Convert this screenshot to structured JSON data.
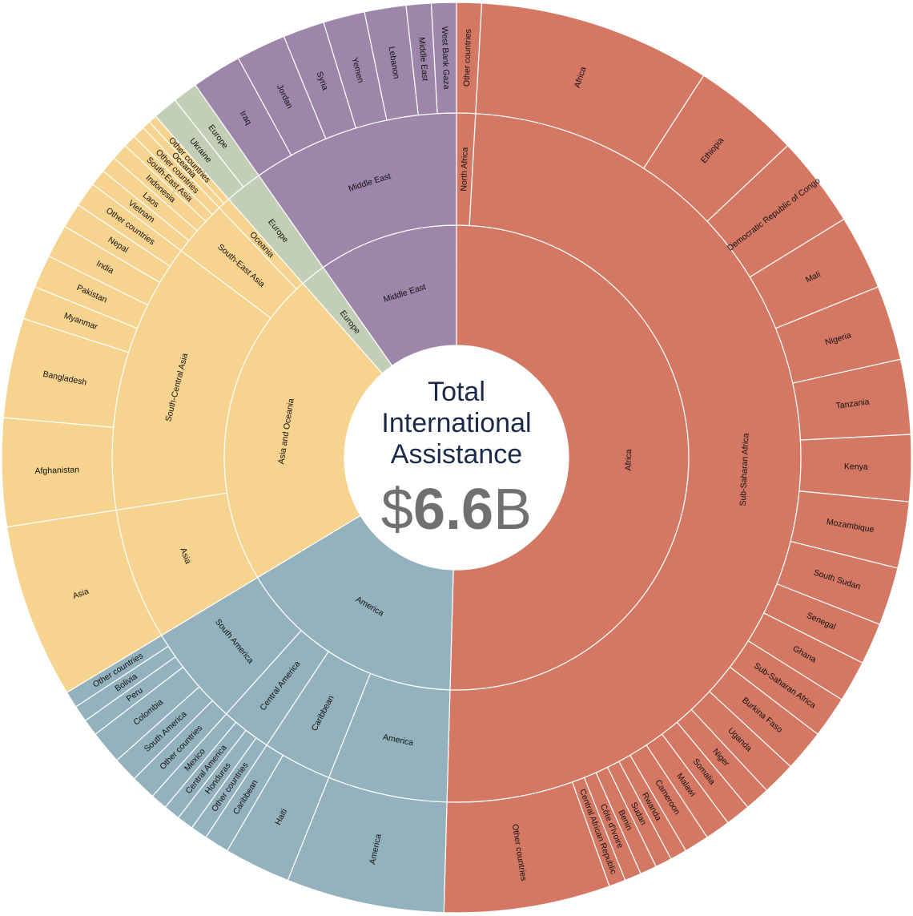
{
  "chart_data": {
    "type": "sunburst",
    "center": {
      "line1": "Total",
      "line2": "International",
      "line3": "Assistance",
      "amount_prefix": "$",
      "amount_bold": "6.6",
      "amount_suffix": "B"
    },
    "colors": {
      "Africa": "#d47864",
      "Middle East": "#9e86ab",
      "Europe": "#c3ceb6",
      "Asia and Oceania": "#f6d38e",
      "America": "#93b2bd"
    },
    "children": [
      {
        "name": "Africa",
        "group": "Africa",
        "children": [
          {
            "name": "North Africa",
            "children": [
              {
                "name": "Other countries",
                "value": 3
              }
            ]
          },
          {
            "name": "Sub-Saharan Africa",
            "children": [
              {
                "name": "Africa",
                "value": 28
              },
              {
                "name": "Ethiopia",
                "value": 13
              },
              {
                "name": "Democratic Republic of Congo",
                "value": 11
              },
              {
                "name": "Mali",
                "value": 9
              },
              {
                "name": "Nigeria",
                "value": 9
              },
              {
                "name": "Tanzania",
                "value": 9
              },
              {
                "name": "Kenya",
                "value": 8
              },
              {
                "name": "Mozambique",
                "value": 8
              },
              {
                "name": "South Sudan",
                "value": 7
              },
              {
                "name": "Senegal",
                "value": 5
              },
              {
                "name": "Ghana",
                "value": 5
              },
              {
                "name": "Sub-Saharan Africa",
                "value": 5
              },
              {
                "name": "Burkina Faso",
                "value": 5
              },
              {
                "name": "Uganda",
                "value": 4
              },
              {
                "name": "Niger",
                "value": 3
              },
              {
                "name": "Somalia",
                "value": 3
              },
              {
                "name": "Malawi",
                "value": 3
              },
              {
                "name": "Cameroon",
                "value": 3
              },
              {
                "name": "Rwanda",
                "value": 2
              },
              {
                "name": "Sudan",
                "value": 2
              },
              {
                "name": "Benin",
                "value": 2
              },
              {
                "name": "Côte d'Ivoire",
                "value": 2
              },
              {
                "name": "Central African Republic",
                "value": 2
              },
              {
                "name": "Other countries",
                "value": 20
              }
            ]
          }
        ]
      },
      {
        "name": "America",
        "group": "America",
        "children": [
          {
            "name": "America",
            "children": [
              {
                "name": "America",
                "value": 19
              }
            ]
          },
          {
            "name": "Caribbean",
            "children": [
              {
                "name": "Haiti",
                "value": 8
              },
              {
                "name": "Caribbean",
                "value": 3
              }
            ]
          },
          {
            "name": "Central America",
            "children": [
              {
                "name": "Other countries",
                "value": 2
              },
              {
                "name": "Honduras",
                "value": 2
              },
              {
                "name": "Central America",
                "value": 2
              },
              {
                "name": "Mexico",
                "value": 2
              }
            ]
          },
          {
            "name": "South America",
            "children": [
              {
                "name": "Other countries",
                "value": 3
              },
              {
                "name": "South America",
                "value": 3
              },
              {
                "name": "Colombia",
                "value": 4
              },
              {
                "name": "Peru",
                "value": 2
              },
              {
                "name": "Bolivia",
                "value": 2
              },
              {
                "name": "Other countries",
                "value": 2
              }
            ]
          }
        ]
      },
      {
        "name": "Asia and Oceania",
        "group": "Asia and Oceania",
        "children": [
          {
            "name": "Asia",
            "children": [
              {
                "name": "Asia",
                "value": 21
              }
            ]
          },
          {
            "name": "South-Central Asia",
            "children": [
              {
                "name": "Afghanistan",
                "value": 13
              },
              {
                "name": "Bangladesh",
                "value": 12
              },
              {
                "name": "Myanmar",
                "value": 4
              },
              {
                "name": "Pakistan",
                "value": 4
              },
              {
                "name": "India",
                "value": 4
              },
              {
                "name": "Nepal",
                "value": 3
              },
              {
                "name": "Other countries",
                "value": 3
              }
            ]
          },
          {
            "name": "South-East Asia",
            "children": [
              {
                "name": "Vietnam",
                "value": 2
              },
              {
                "name": "Laos",
                "value": 2
              },
              {
                "name": "Indonesia",
                "value": 2
              },
              {
                "name": "South-East Asia",
                "value": 1.5
              },
              {
                "name": "Other countries",
                "value": 1.5
              }
            ]
          },
          {
            "name": "Oceania",
            "children": [
              {
                "name": "Oceania",
                "value": 1
              },
              {
                "name": "Other countries",
                "value": 1
              }
            ]
          }
        ]
      },
      {
        "name": "Europe",
        "group": "Europe",
        "children": [
          {
            "name": "Europe",
            "children": [
              {
                "name": "Ukraine",
                "value": 3
              },
              {
                "name": "Europe",
                "value": 3
              }
            ]
          }
        ]
      },
      {
        "name": "Middle East",
        "group": "Middle East",
        "children": [
          {
            "name": "Middle East",
            "children": [
              {
                "name": "Iraq",
                "value": 6
              },
              {
                "name": "Jordan",
                "value": 6
              },
              {
                "name": "Syria",
                "value": 5
              },
              {
                "name": "Yemen",
                "value": 5
              },
              {
                "name": "Lebanon",
                "value": 5
              },
              {
                "name": "Middle East",
                "value": 3
              },
              {
                "name": "West Bank Gaza",
                "value": 3
              }
            ]
          }
        ]
      }
    ]
  }
}
